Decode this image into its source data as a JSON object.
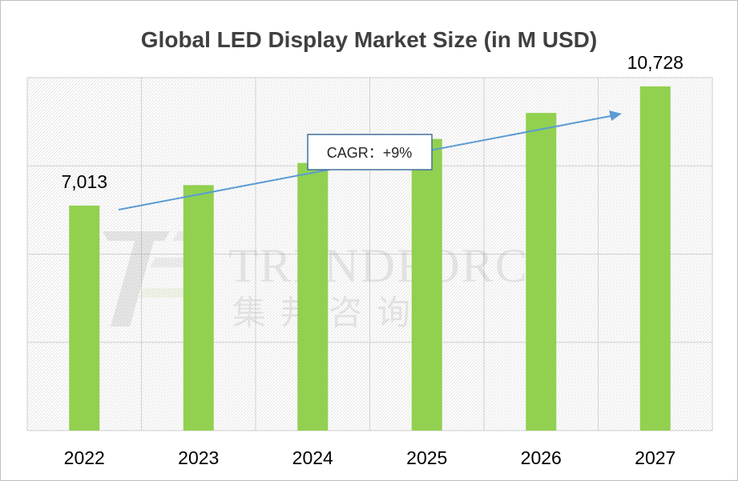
{
  "chart_data": {
    "type": "bar",
    "title": "Global LED Display Market Size (in M USD)",
    "categories": [
      "2022",
      "2023",
      "2024",
      "2025",
      "2026",
      "2027"
    ],
    "values": [
      7013,
      7650,
      8340,
      9090,
      9900,
      10728
    ],
    "data_labels": {
      "2022": "7,013",
      "2027": "10,728"
    },
    "ylim": [
      0,
      11000
    ],
    "grid": true,
    "legend": "none",
    "bar_color": "#92d050",
    "annotation": {
      "text": "CAGR：+9%",
      "arrow_color": "#5b9bd5"
    },
    "watermark": {
      "text": "TRENDFORCE",
      "subtext": "集邦咨询"
    }
  }
}
